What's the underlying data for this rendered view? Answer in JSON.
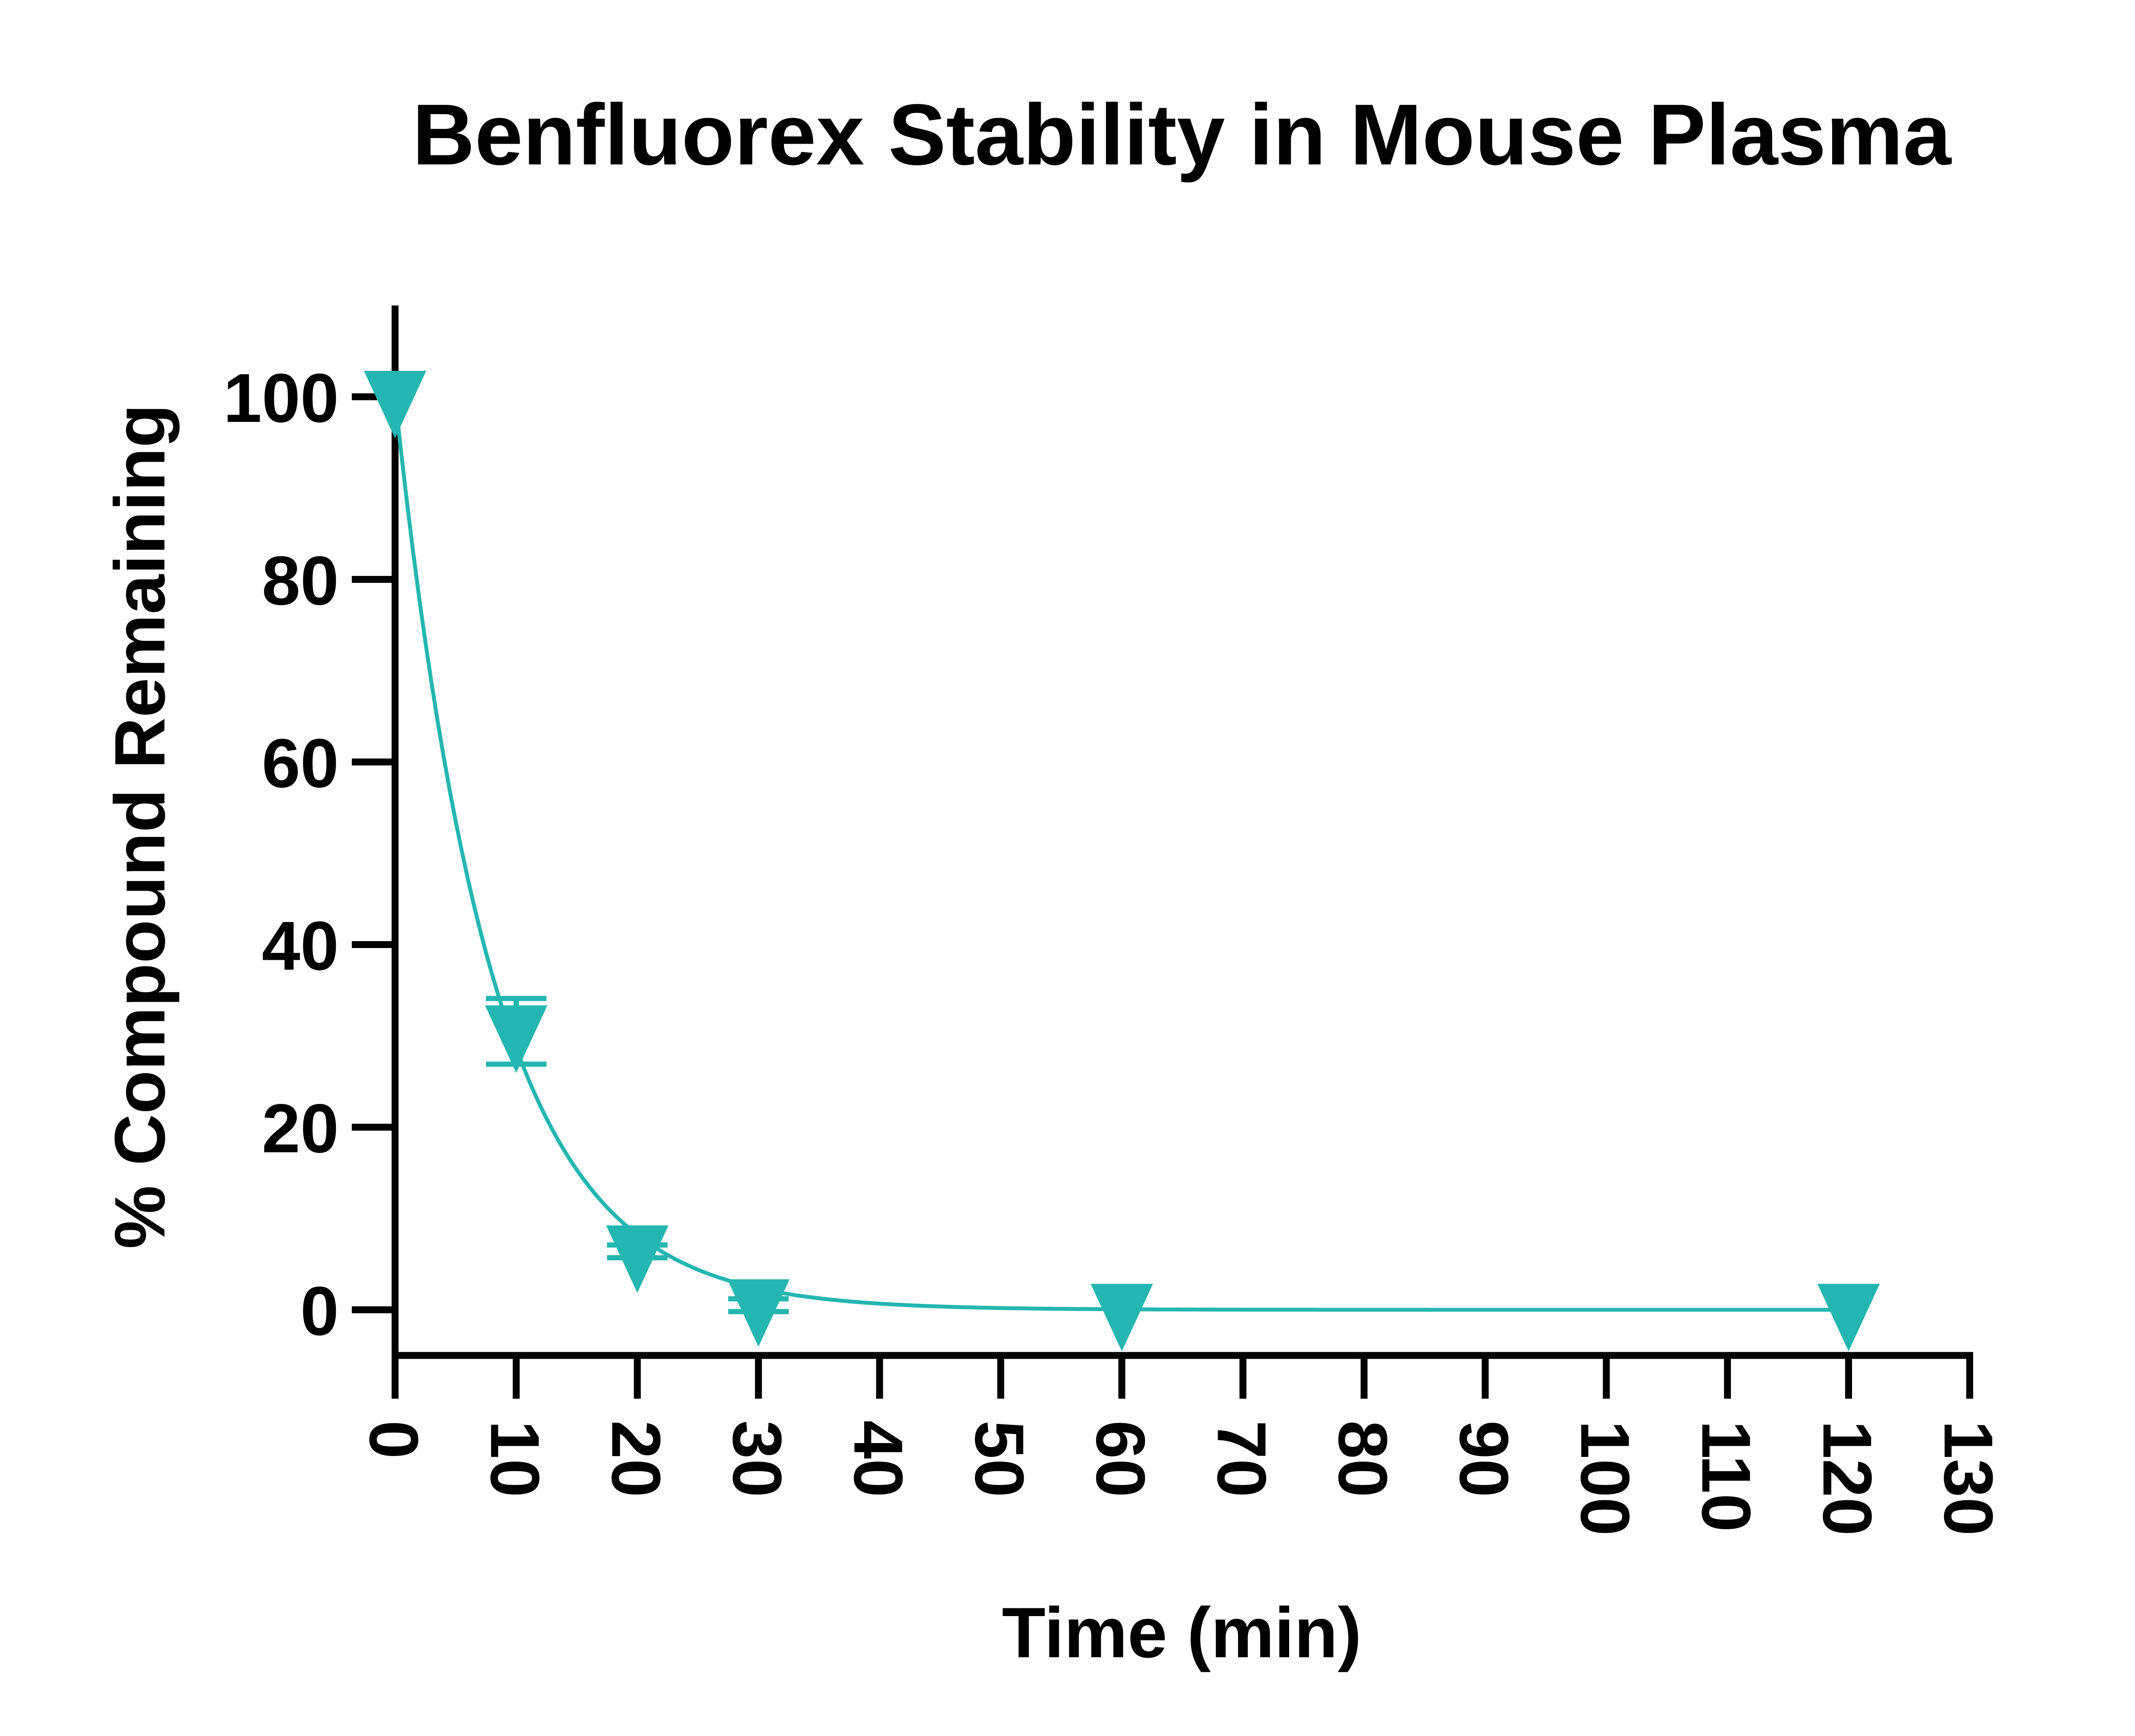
{
  "chart_data": {
    "type": "scatter",
    "title": "Benfluorex Stability in Mouse Plasma",
    "xlabel": "Time (min)",
    "ylabel": "% Compound Remaining",
    "xlim": [
      0,
      130
    ],
    "ylim": [
      -5,
      110
    ],
    "xticks": [
      0,
      10,
      20,
      30,
      40,
      50,
      60,
      70,
      80,
      90,
      100,
      110,
      120,
      130
    ],
    "yticks": [
      0,
      20,
      40,
      60,
      80,
      100
    ],
    "grid": false,
    "legend": "none",
    "series": [
      {
        "x": [
          0,
          10,
          20,
          30,
          60,
          120
        ],
        "y": [
          100,
          30.5,
          6.4,
          0.5,
          0,
          0
        ],
        "error": [
          0,
          3.6,
          0.7,
          0.7,
          0,
          0
        ],
        "marker": "triangle-down",
        "color": "#24b6b0"
      }
    ],
    "fit_curve": {
      "model": "exponential decay",
      "y0": 100,
      "plateau": 0,
      "k": 0.125,
      "color": "#24b6b0"
    }
  }
}
